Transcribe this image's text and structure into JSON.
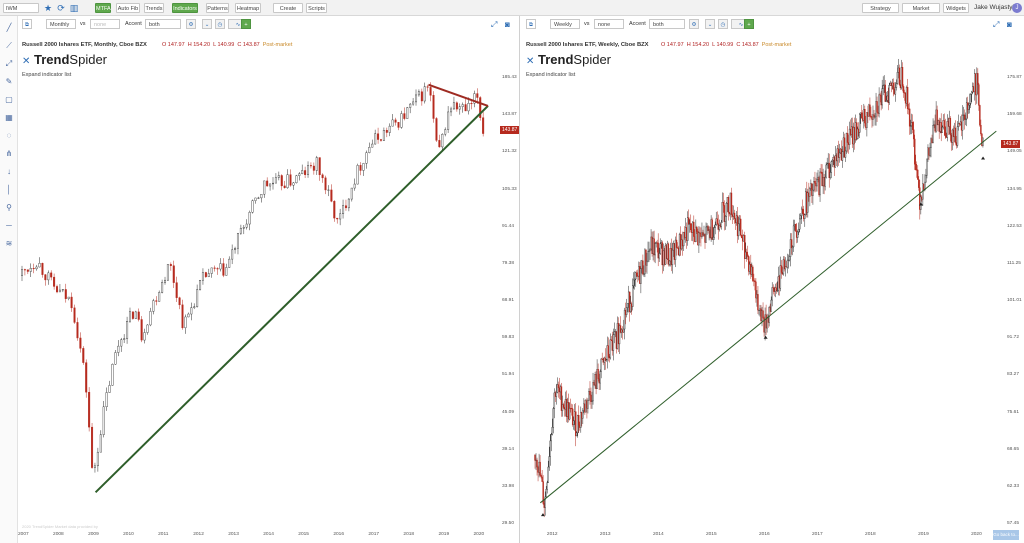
{
  "topbar": {
    "symbol": "IWM",
    "items": [
      "MTFA",
      "Auto Fib",
      "Trends",
      "Indicators",
      "Patterns",
      "Heatmap",
      "Create alert",
      "Scripts"
    ],
    "right_items": [
      "Strategy Tester",
      "Market Scanner",
      "Widgets"
    ],
    "user_name": "Jake Wujastyk",
    "avatar_initial": "J"
  },
  "left_tools": [
    "line-tool",
    "trend-tool",
    "fib-tool",
    "pen-tool",
    "rectangle-tool",
    "channel-tool",
    "measure-tool",
    "pitchfork-tool",
    "arrow-down-tool",
    "vertical-line-tool",
    "anchored-vwap-tool",
    "horizontal-line-tool",
    "pattern-tool"
  ],
  "panels": [
    {
      "timeframe": "Monthly",
      "vs_label": "vs",
      "compare": "none",
      "accent_label": "Accent",
      "accent_value": "both",
      "title": "Russell 2000 Ishares ETF, Monthly, Cboe BZX",
      "ohlc": {
        "o": "O 147.97",
        "h": "H 154.20",
        "l": "L 140.99",
        "c": "C 143.87",
        "status": "Post-market"
      },
      "logo_a": "Trend",
      "logo_b": "Spider",
      "expand": "Expand indicator list",
      "price_flag": "143.87",
      "watermark": "2020 TrendSpider  Market data provided by",
      "y_ticks": [
        "185.43",
        "143.87",
        "121.32",
        "105.33",
        "91.44",
        "79.38",
        "68.91",
        "59.83",
        "51.94",
        "45.09",
        "39.14",
        "33.98",
        "29.50"
      ],
      "x_ticks": [
        "2007",
        "2008",
        "2009",
        "2010",
        "2011",
        "2012",
        "2013",
        "2014",
        "2015",
        "2016",
        "2017",
        "2018",
        "2019",
        "2020"
      ]
    },
    {
      "timeframe": "Weekly",
      "vs_label": "vs",
      "compare": "none",
      "accent_label": "Accent",
      "accent_value": "both",
      "title": "Russell 2000 Ishares ETF, Weekly, Cboe BZX",
      "ohlc": {
        "o": "O 147.97",
        "h": "H 154.20",
        "l": "L 140.99",
        "c": "C 143.87",
        "status": "Post-market"
      },
      "logo_a": "Trend",
      "logo_b": "Spider",
      "expand": "Expand indicator list",
      "price_flag": "143.87",
      "sync_button": "Go back to...",
      "y_ticks": [
        "175.87",
        "159.68",
        "149.05",
        "134.95",
        "122.53",
        "111.25",
        "101.01",
        "91.72",
        "83.27",
        "75.61",
        "68.65",
        "62.33",
        "57.45"
      ],
      "x_ticks": [
        "2012",
        "2013",
        "2014",
        "2015",
        "2016",
        "2017",
        "2018",
        "2019",
        "2020"
      ]
    }
  ],
  "colors": {
    "up": "#2b2b2b",
    "down": "#b62a1e",
    "trendline": "#2e5e2a",
    "resistance": "#9e2b22",
    "accent": "#5fa84d"
  },
  "chart_data": [
    {
      "type": "candlestick",
      "title": "Russell 2000 Ishares ETF, Monthly, Cboe BZX",
      "x_range": [
        "2007",
        "2020"
      ],
      "ylim": [
        29.5,
        185.43
      ],
      "log_scale": true,
      "waypoints": [
        [
          2007.0,
          80
        ],
        [
          2007.5,
          85
        ],
        [
          2008.0,
          76
        ],
        [
          2008.5,
          72
        ],
        [
          2008.9,
          52
        ],
        [
          2009.1,
          35
        ],
        [
          2009.3,
          42
        ],
        [
          2009.8,
          60
        ],
        [
          2010.3,
          70
        ],
        [
          2010.5,
          63
        ],
        [
          2011.3,
          84
        ],
        [
          2011.7,
          65
        ],
        [
          2012.3,
          80
        ],
        [
          2012.9,
          82
        ],
        [
          2013.5,
          100
        ],
        [
          2014.0,
          115
        ],
        [
          2014.8,
          117
        ],
        [
          2015.5,
          125
        ],
        [
          2016.1,
          98
        ],
        [
          2016.5,
          115
        ],
        [
          2017.0,
          135
        ],
        [
          2017.9,
          150
        ],
        [
          2018.7,
          171
        ],
        [
          2018.95,
          128
        ],
        [
          2019.3,
          158
        ],
        [
          2019.8,
          155
        ],
        [
          2020.1,
          165
        ],
        [
          2020.2,
          143.87
        ]
      ],
      "lines": [
        {
          "name": "support",
          "from": [
            2009.1,
            33.5
          ],
          "to": [
            2020.3,
            158
          ]
        },
        {
          "name": "resistance",
          "from": [
            2018.6,
            172
          ],
          "to": [
            2020.3,
            158
          ]
        }
      ]
    },
    {
      "type": "candlestick",
      "title": "Russell 2000 Ishares ETF, Weekly, Cboe BZX",
      "x_range": [
        "2012",
        "2020"
      ],
      "ylim": [
        57.45,
        175.87
      ],
      "log_scale": true,
      "waypoints": [
        [
          2011.75,
          68
        ],
        [
          2011.9,
          60
        ],
        [
          2012.1,
          80
        ],
        [
          2012.5,
          73
        ],
        [
          2012.9,
          82
        ],
        [
          2013.3,
          92
        ],
        [
          2013.9,
          113
        ],
        [
          2014.3,
          110
        ],
        [
          2014.6,
          118
        ],
        [
          2014.9,
          115
        ],
        [
          2015.4,
          126
        ],
        [
          2015.7,
          112
        ],
        [
          2016.05,
          93
        ],
        [
          2016.2,
          100
        ],
        [
          2016.8,
          125
        ],
        [
          2017.3,
          138
        ],
        [
          2017.95,
          155
        ],
        [
          2018.65,
          172
        ],
        [
          2018.85,
          147
        ],
        [
          2018.98,
          127
        ],
        [
          2019.3,
          155
        ],
        [
          2019.7,
          148
        ],
        [
          2020.05,
          170
        ],
        [
          2020.15,
          143.87
        ]
      ],
      "lines": [
        {
          "name": "support",
          "from": [
            2011.8,
            60.5
          ],
          "to": [
            2020.4,
            150
          ]
        }
      ],
      "markers": [
        [
          2011.85,
          59
        ],
        [
          2016.05,
          91
        ],
        [
          2018.98,
          126
        ],
        [
          2020.15,
          141
        ]
      ]
    }
  ]
}
